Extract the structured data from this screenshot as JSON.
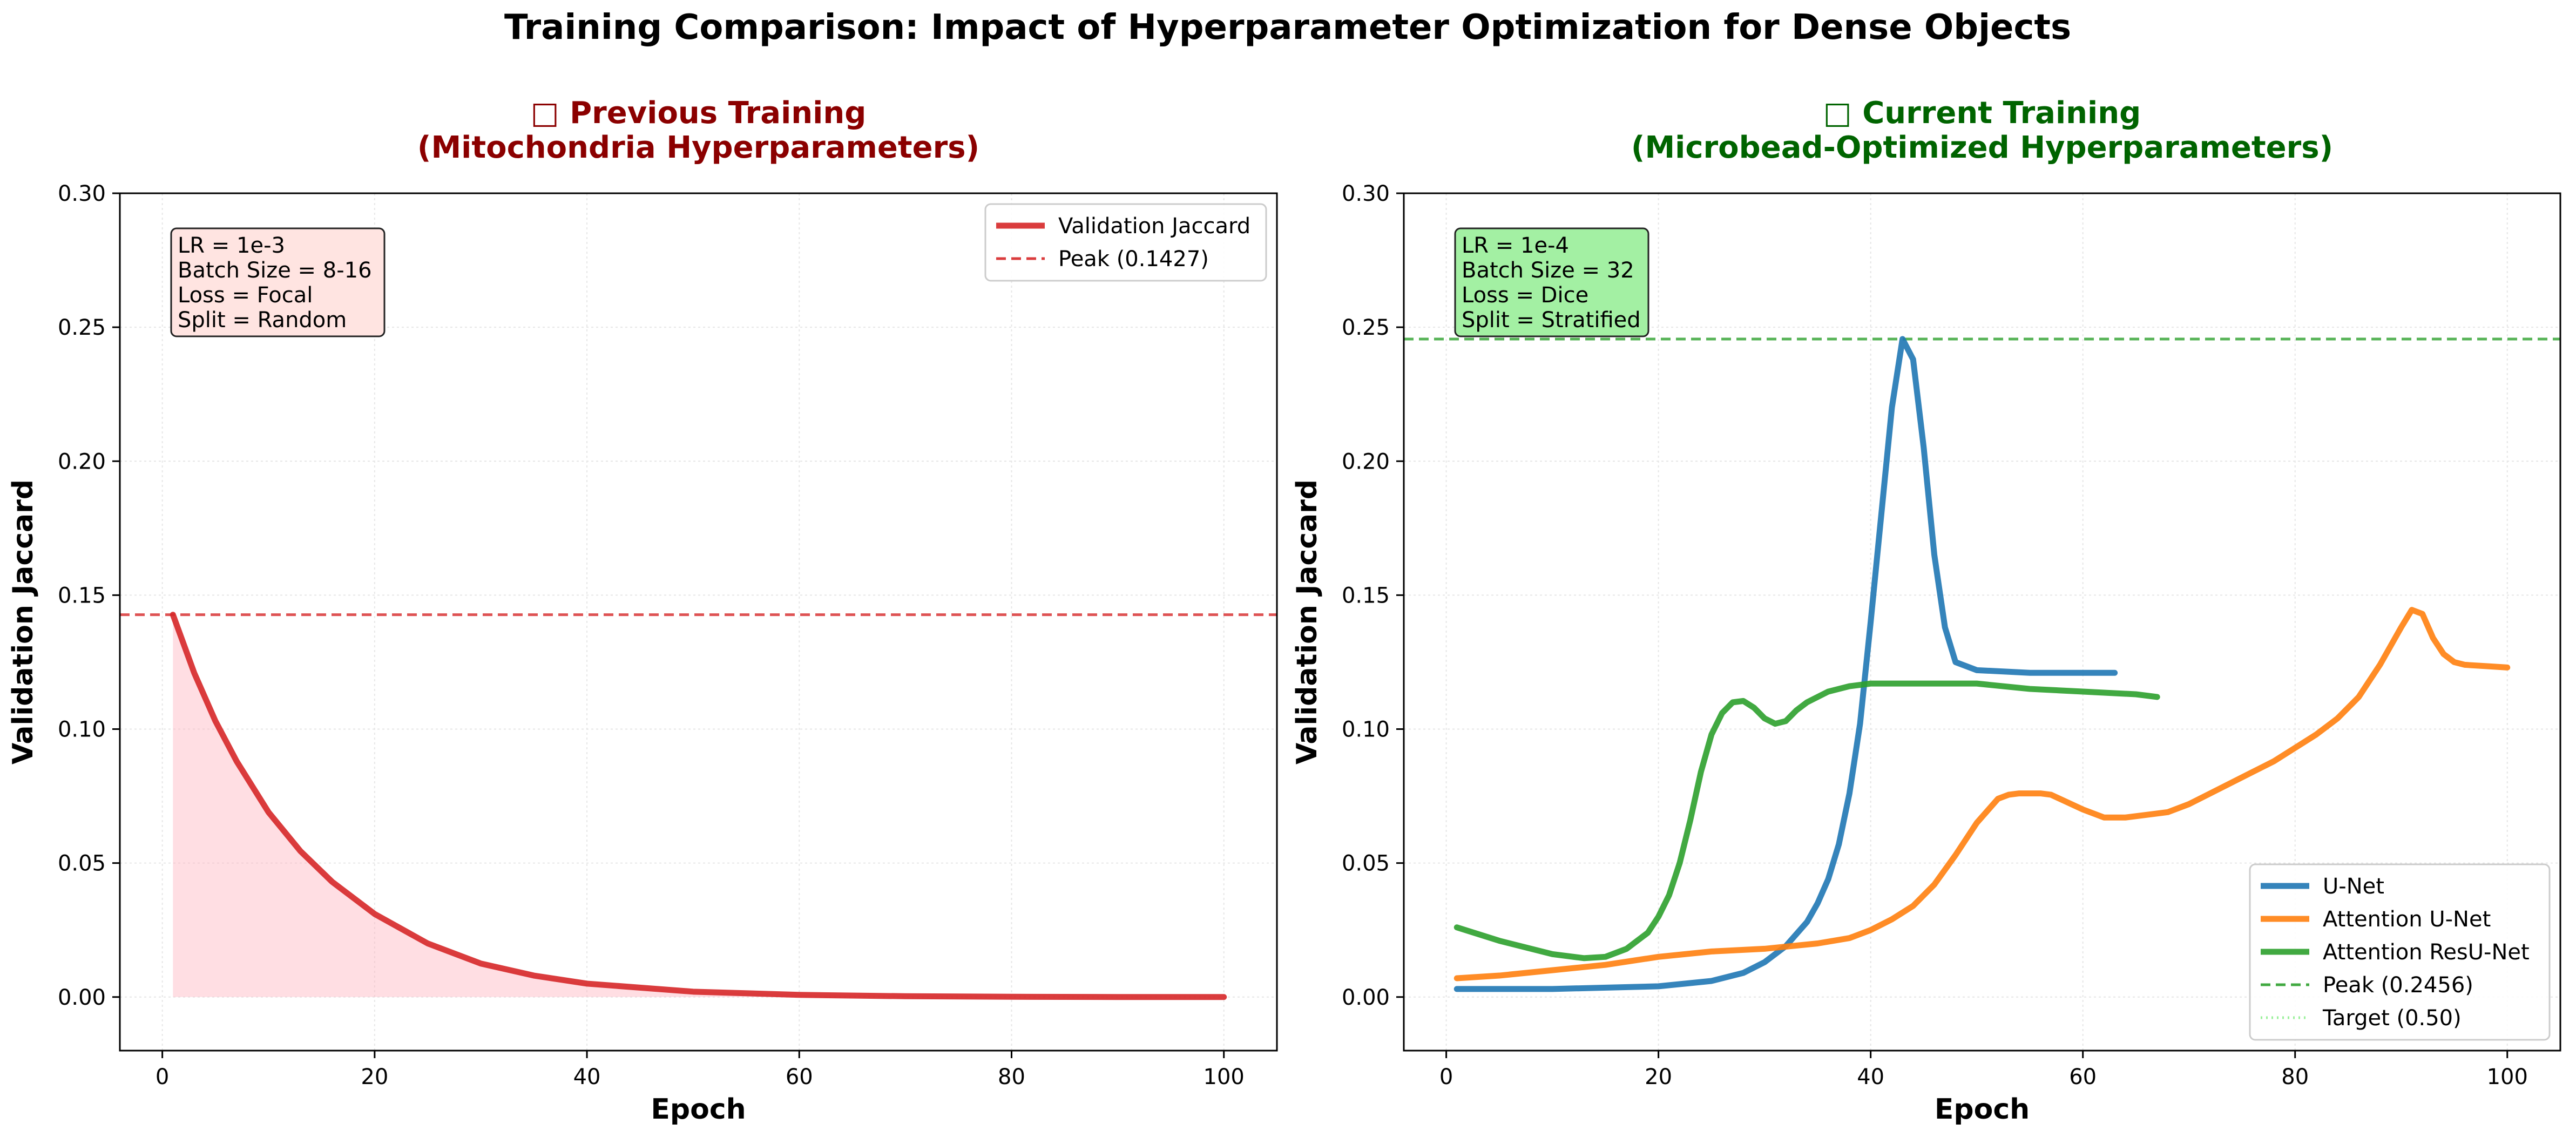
{
  "figure": {
    "suptitle": "Training Comparison: Impact of Hyperparameter Optimization for Dense Objects"
  },
  "colors": {
    "red": "#d62728",
    "darkred": "#8b0000",
    "blue": "#1f77b4",
    "orange": "#ff7f0e",
    "green": "#2ca02c",
    "darkgreen": "#006400",
    "lightgreen": "#90ee90",
    "grid": "#e6e6e6",
    "fill_red": "#ffb6c1",
    "box_red": "#ffe4e1",
    "box_green": "#a3f0a3"
  },
  "chart_data": [
    {
      "type": "line",
      "title_line1": "□ Previous Training",
      "title_line2": "(Mitochondria Hyperparameters)",
      "xlabel": "Epoch",
      "ylabel": "Validation Jaccard",
      "xlim": [
        -4,
        105
      ],
      "ylim": [
        -0.02,
        0.3
      ],
      "xticks": [
        0,
        20,
        40,
        60,
        80,
        100
      ],
      "xtick_labels": [
        "0",
        "20",
        "40",
        "60",
        "80",
        "100"
      ],
      "yticks": [
        0.0,
        0.05,
        0.1,
        0.15,
        0.2,
        0.25,
        0.3
      ],
      "ytick_labels": [
        "0.00",
        "0.05",
        "0.10",
        "0.15",
        "0.20",
        "0.25",
        "0.30"
      ],
      "grid": true,
      "legend_position": "top-right",
      "info_box": [
        "LR = 1e-3",
        "Batch Size = 8-16",
        "Loss = Focal",
        "Split = Random"
      ],
      "series": [
        {
          "name": "Validation Jaccard",
          "style": "solid",
          "filled": true,
          "x": [
            1,
            3,
            5,
            7,
            10,
            13,
            16,
            20,
            25,
            30,
            35,
            40,
            50,
            60,
            70,
            80,
            90,
            100
          ],
          "y": [
            0.1427,
            0.121,
            0.103,
            0.088,
            0.069,
            0.0545,
            0.043,
            0.031,
            0.02,
            0.0125,
            0.008,
            0.005,
            0.002,
            0.0008,
            0.0003,
            0.0001,
            0.0,
            0.0
          ]
        }
      ],
      "reference_lines": [
        {
          "name": "Peak (0.1427)",
          "y": 0.1427,
          "style": "dashed"
        }
      ]
    },
    {
      "type": "line",
      "title_line1": "□ Current Training",
      "title_line2": "(Microbead-Optimized Hyperparameters)",
      "xlabel": "Epoch",
      "ylabel": "Validation Jaccard",
      "xlim": [
        -4,
        105
      ],
      "ylim": [
        -0.02,
        0.3
      ],
      "xticks": [
        0,
        20,
        40,
        60,
        80,
        100
      ],
      "xtick_labels": [
        "0",
        "20",
        "40",
        "60",
        "80",
        "100"
      ],
      "yticks": [
        0.0,
        0.05,
        0.1,
        0.15,
        0.2,
        0.25,
        0.3
      ],
      "ytick_labels": [
        "0.00",
        "0.05",
        "0.10",
        "0.15",
        "0.20",
        "0.25",
        "0.30"
      ],
      "grid": true,
      "legend_position": "bottom-right",
      "info_box": [
        "LR = 1e-4",
        "Batch Size = 32",
        "Loss = Dice",
        "Split = Stratified"
      ],
      "series": [
        {
          "name": "U-Net",
          "style": "solid",
          "x": [
            1,
            10,
            20,
            25,
            28,
            30,
            32,
            34,
            35,
            36,
            37,
            38,
            39,
            40,
            41,
            42,
            43,
            44,
            45,
            46,
            47,
            48,
            50,
            55,
            60,
            63
          ],
          "y": [
            0.003,
            0.003,
            0.004,
            0.006,
            0.009,
            0.013,
            0.019,
            0.028,
            0.035,
            0.044,
            0.057,
            0.076,
            0.102,
            0.14,
            0.18,
            0.22,
            0.2456,
            0.238,
            0.205,
            0.165,
            0.138,
            0.125,
            0.122,
            0.121,
            0.121,
            0.121
          ]
        },
        {
          "name": "Attention U-Net",
          "style": "solid",
          "x": [
            1,
            5,
            10,
            15,
            20,
            25,
            30,
            35,
            38,
            40,
            42,
            44,
            46,
            48,
            50,
            52,
            53,
            54,
            56,
            57,
            60,
            62,
            64,
            66,
            68,
            70,
            72,
            74,
            76,
            78,
            80,
            82,
            84,
            86,
            88,
            89,
            90,
            91,
            92,
            93,
            94,
            95,
            96,
            98,
            100
          ],
          "y": [
            0.007,
            0.008,
            0.01,
            0.012,
            0.015,
            0.017,
            0.018,
            0.02,
            0.022,
            0.025,
            0.029,
            0.034,
            0.042,
            0.053,
            0.065,
            0.074,
            0.0755,
            0.076,
            0.076,
            0.0755,
            0.07,
            0.067,
            0.067,
            0.068,
            0.069,
            0.072,
            0.076,
            0.08,
            0.084,
            0.088,
            0.093,
            0.098,
            0.104,
            0.112,
            0.124,
            0.131,
            0.138,
            0.1445,
            0.143,
            0.134,
            0.128,
            0.125,
            0.124,
            0.1235,
            0.123
          ]
        },
        {
          "name": "Attention ResU-Net",
          "style": "solid",
          "x": [
            1,
            5,
            10,
            13,
            15,
            17,
            19,
            20,
            21,
            22,
            23,
            24,
            25,
            26,
            27,
            28,
            29,
            30,
            31,
            32,
            33,
            34,
            36,
            38,
            40,
            45,
            50,
            55,
            60,
            65,
            67
          ],
          "y": [
            0.026,
            0.021,
            0.016,
            0.0145,
            0.015,
            0.018,
            0.024,
            0.03,
            0.038,
            0.05,
            0.066,
            0.084,
            0.098,
            0.106,
            0.11,
            0.1105,
            0.108,
            0.104,
            0.102,
            0.103,
            0.107,
            0.11,
            0.114,
            0.116,
            0.117,
            0.117,
            0.117,
            0.115,
            0.114,
            0.113,
            0.112
          ]
        }
      ],
      "reference_lines": [
        {
          "name": "Peak (0.2456)",
          "y": 0.2456,
          "style": "dashed"
        },
        {
          "name": "Target (0.50)",
          "y": 0.5,
          "style": "dotted"
        }
      ]
    }
  ]
}
